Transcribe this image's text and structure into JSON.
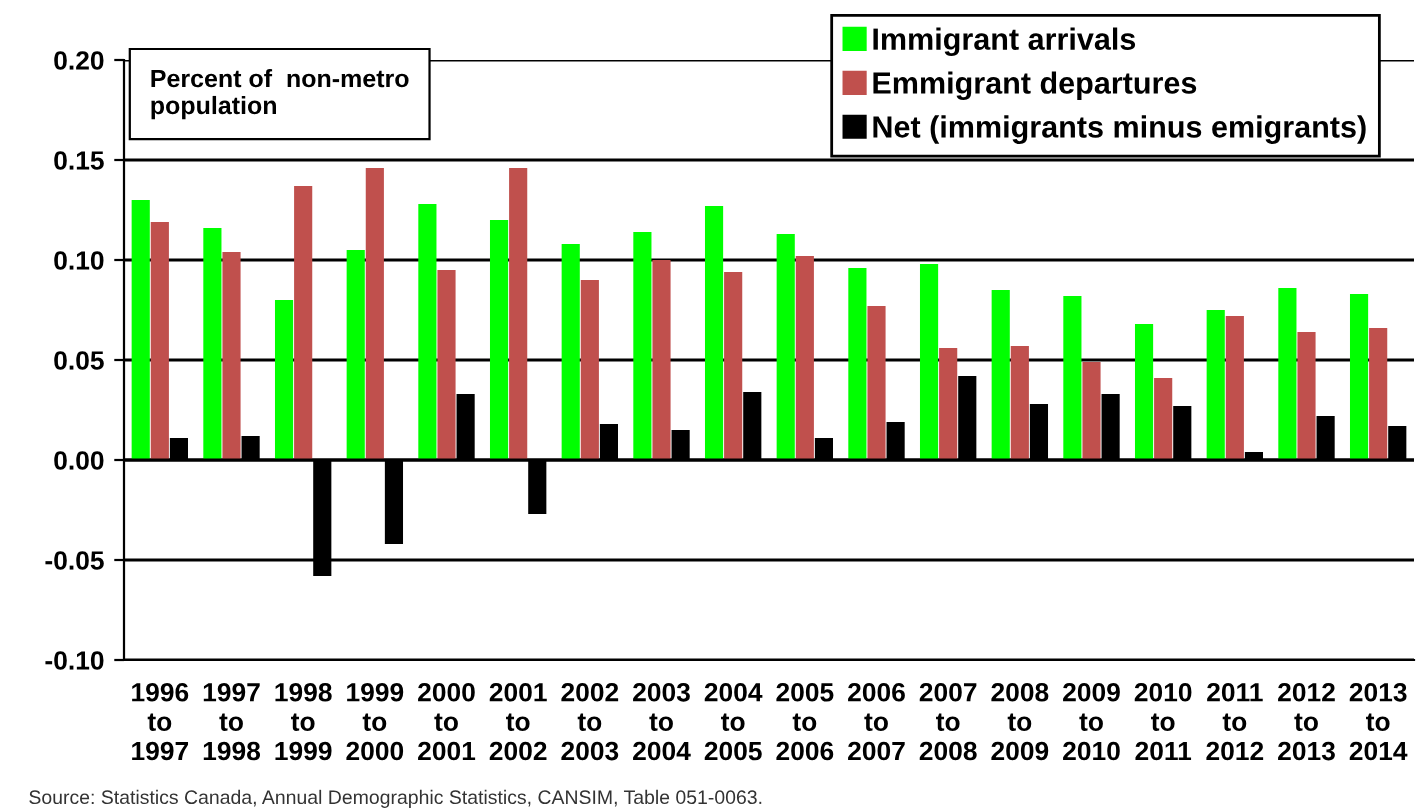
{
  "chart_data": {
    "type": "bar",
    "ylabel": "Percent of  non-metro\npopulation",
    "categories": [
      "1996\nto\n1997",
      "1997\nto\n1998",
      "1998\nto\n1999",
      "1999\nto\n2000",
      "2000\nto\n2001",
      "2001\nto\n2002",
      "2002\nto\n2003",
      "2003\nto\n2004",
      "2004\nto\n2005",
      "2005\nto\n2006",
      "2006\nto\n2007",
      "2007\nto\n2008",
      "2008\nto\n2009",
      "2009\nto\n2010",
      "2010\nto\n2011",
      "2011\nto\n2012",
      "2012\nto\n2013",
      "2013\nto\n2014"
    ],
    "series": [
      {
        "name": "Immigrant arrivals",
        "color": "#00ff00",
        "values": [
          0.13,
          0.116,
          0.08,
          0.105,
          0.128,
          0.12,
          0.108,
          0.114,
          0.127,
          0.113,
          0.096,
          0.098,
          0.085,
          0.082,
          0.068,
          0.075,
          0.086,
          0.083
        ]
      },
      {
        "name": "Emmigrant departures",
        "color": "#c0504d",
        "values": [
          0.119,
          0.104,
          0.137,
          0.146,
          0.095,
          0.146,
          0.09,
          0.1,
          0.094,
          0.102,
          0.077,
          0.056,
          0.057,
          0.049,
          0.041,
          0.072,
          0.064,
          0.066
        ]
      },
      {
        "name": "Net (immigrants minus emigrants)",
        "color": "#000000",
        "values": [
          0.011,
          0.012,
          -0.058,
          -0.042,
          0.033,
          -0.027,
          0.018,
          0.015,
          0.034,
          0.011,
          0.019,
          0.042,
          0.028,
          0.033,
          0.027,
          0.004,
          0.022,
          0.017
        ]
      }
    ],
    "ylim": [
      -0.1,
      0.2
    ],
    "yticks": [
      {
        "value": -0.1,
        "label": "-0.10"
      },
      {
        "value": -0.05,
        "label": "-0.05"
      },
      {
        "value": 0.0,
        "label": "0.00"
      },
      {
        "value": 0.05,
        "label": "0.05"
      },
      {
        "value": 0.1,
        "label": "0.10"
      },
      {
        "value": 0.15,
        "label": "0.15"
      },
      {
        "value": 0.2,
        "label": "0.20"
      }
    ],
    "grid": "y",
    "legend": "top right",
    "annotations": [
      "Source: Statistics Canada, Annual Demographic Statistics, CANSIM, Table 051-0063."
    ]
  }
}
